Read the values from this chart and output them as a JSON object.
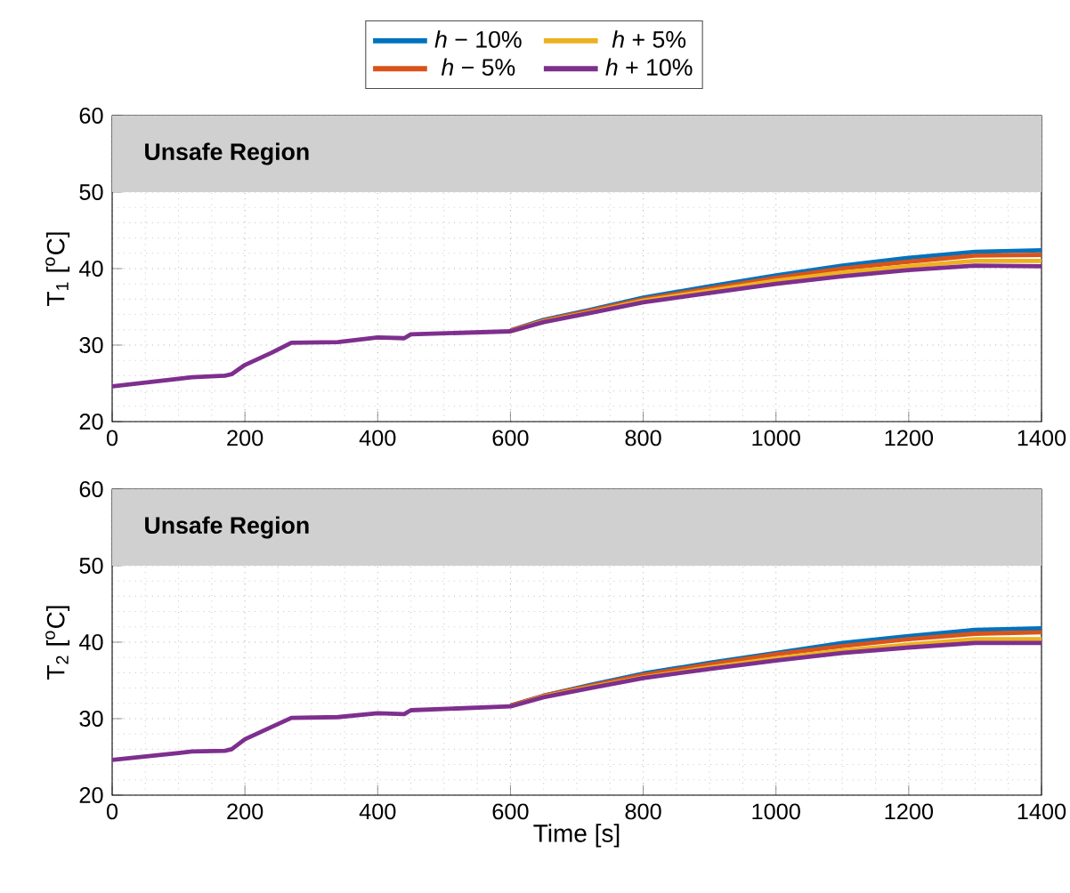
{
  "chart_data": [
    {
      "type": "line",
      "ylabel": "T$_{1}$ [$^{o}$C]",
      "xlim": [
        0,
        1400
      ],
      "xticks": [
        0,
        200,
        400,
        600,
        800,
        1000,
        1200,
        1400
      ],
      "ylim": [
        20,
        60
      ],
      "yticks": [
        20,
        30,
        40,
        50,
        60
      ],
      "grid": true,
      "legend": "top",
      "bands": [
        {
          "axis": "y",
          "from": 50,
          "to": 60,
          "label": "Unsafe Region",
          "color": "#d0d0d0"
        }
      ],
      "x": [
        0,
        100,
        120,
        170,
        180,
        200,
        240,
        270,
        340,
        400,
        440,
        450,
        600,
        650,
        720,
        800,
        900,
        1000,
        1100,
        1200,
        1300,
        1400
      ],
      "series": [
        {
          "name": "*h* − 10%",
          "color": "#0072bd",
          "values": [
            null,
            null,
            null,
            null,
            null,
            null,
            null,
            null,
            null,
            null,
            null,
            null,
            31.9,
            33.3,
            34.6,
            36.2,
            37.7,
            39.1,
            40.4,
            41.4,
            42.2,
            42.4
          ]
        },
        {
          "name": "*h* − 5%",
          "color": "#d95319",
          "values": [
            null,
            null,
            null,
            null,
            null,
            null,
            null,
            null,
            null,
            null,
            null,
            null,
            31.9,
            33.2,
            34.5,
            36.0,
            37.4,
            38.8,
            40.0,
            40.9,
            41.7,
            41.8
          ]
        },
        {
          "name": "*h* + 5%",
          "color": "#edb120",
          "values": [
            null,
            null,
            null,
            null,
            null,
            null,
            null,
            null,
            null,
            null,
            null,
            null,
            31.8,
            33.1,
            34.3,
            35.8,
            37.1,
            38.4,
            39.5,
            40.3,
            41.0,
            41.0
          ]
        },
        {
          "name": "*h* + 10%",
          "color": "#7e2f8e",
          "values": [
            24.6,
            25.6,
            25.8,
            26.0,
            26.2,
            27.4,
            29.0,
            30.3,
            30.4,
            31.0,
            30.9,
            31.4,
            31.8,
            33.0,
            34.2,
            35.6,
            36.8,
            38.0,
            39.0,
            39.8,
            40.4,
            40.3
          ]
        }
      ]
    },
    {
      "type": "line",
      "xlabel": "Time [s]",
      "ylabel": "T$_{2}$ [$^{o}$C]",
      "xlim": [
        0,
        1400
      ],
      "xticks": [
        0,
        200,
        400,
        600,
        800,
        1000,
        1200,
        1400
      ],
      "ylim": [
        20,
        60
      ],
      "yticks": [
        20,
        30,
        40,
        50,
        60
      ],
      "grid": true,
      "bands": [
        {
          "axis": "y",
          "from": 50,
          "to": 60,
          "label": "Unsafe Region",
          "color": "#d0d0d0"
        }
      ],
      "x": [
        0,
        100,
        120,
        170,
        180,
        200,
        240,
        270,
        340,
        400,
        440,
        450,
        600,
        650,
        720,
        800,
        900,
        1000,
        1100,
        1200,
        1300,
        1400
      ],
      "series": [
        {
          "color": "#0072bd",
          "values": [
            null,
            null,
            null,
            null,
            null,
            null,
            null,
            null,
            null,
            null,
            null,
            null,
            31.7,
            33.0,
            34.4,
            35.9,
            37.3,
            38.6,
            39.9,
            40.8,
            41.6,
            41.8
          ]
        },
        {
          "color": "#d95319",
          "values": [
            null,
            null,
            null,
            null,
            null,
            null,
            null,
            null,
            null,
            null,
            null,
            null,
            31.7,
            33.0,
            34.3,
            35.7,
            37.1,
            38.4,
            39.5,
            40.4,
            41.1,
            41.3
          ]
        },
        {
          "color": "#edb120",
          "values": [
            null,
            null,
            null,
            null,
            null,
            null,
            null,
            null,
            null,
            null,
            null,
            null,
            31.6,
            32.9,
            34.1,
            35.4,
            36.7,
            37.9,
            38.9,
            39.7,
            40.4,
            40.4
          ]
        },
        {
          "color": "#7e2f8e",
          "values": [
            24.6,
            25.5,
            25.7,
            25.8,
            26.0,
            27.3,
            28.9,
            30.1,
            30.2,
            30.7,
            30.6,
            31.1,
            31.6,
            32.8,
            34.0,
            35.3,
            36.5,
            37.6,
            38.6,
            39.3,
            39.9,
            39.9
          ]
        }
      ]
    }
  ]
}
